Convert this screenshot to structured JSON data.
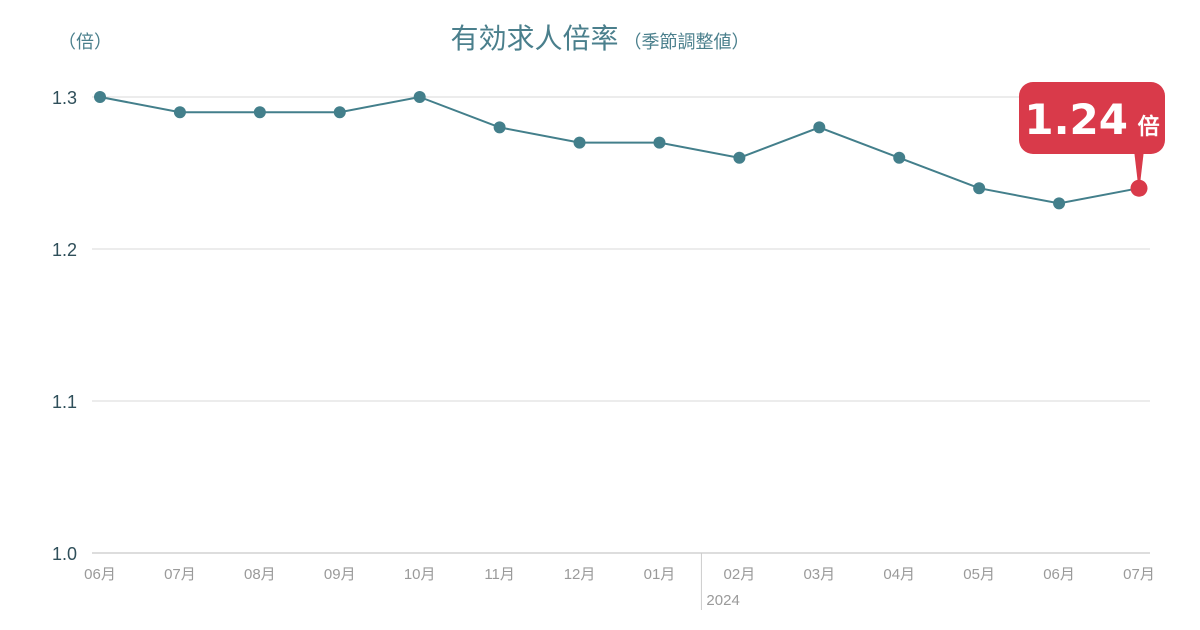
{
  "chart_data": {
    "type": "line",
    "title": "有効求人倍率",
    "subtitle": "（季節調整値）",
    "ylabel": "（倍）",
    "categories": [
      "06月",
      "07月",
      "08月",
      "09月",
      "10月",
      "11月",
      "12月",
      "01月",
      "02月",
      "03月",
      "04月",
      "05月",
      "06月",
      "07月"
    ],
    "year_marker": {
      "label": "2024",
      "before_index": 8
    },
    "values": [
      1.3,
      1.29,
      1.29,
      1.29,
      1.3,
      1.28,
      1.27,
      1.27,
      1.26,
      1.28,
      1.26,
      1.24,
      1.23,
      1.24
    ],
    "ylim": [
      1.0,
      1.3
    ],
    "yticks": [
      "1.0",
      "1.1",
      "1.2",
      "1.3"
    ],
    "grid": true,
    "callout": {
      "value": "1.24",
      "unit": "倍"
    },
    "colors": {
      "line": "#437f8b",
      "highlight": "#d93a4a",
      "title": "#4a7f8c"
    }
  }
}
